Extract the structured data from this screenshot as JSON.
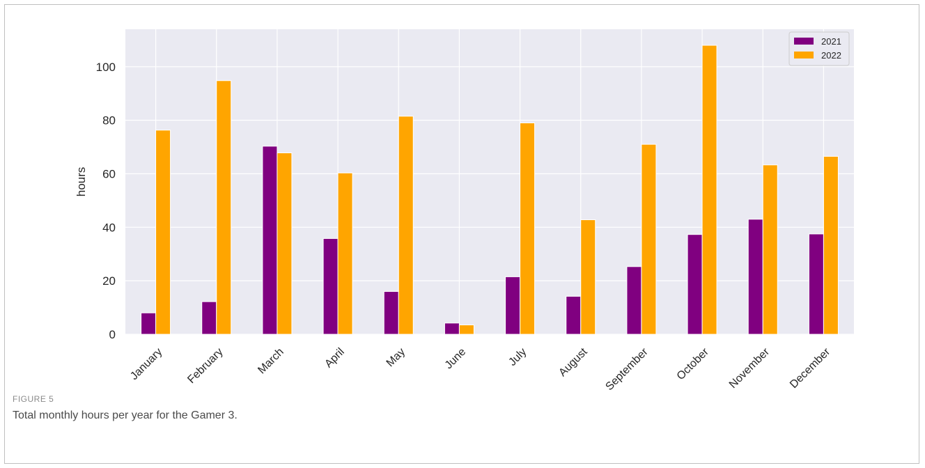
{
  "figure": {
    "label": "FIGURE 5",
    "caption": "Total monthly hours per year for the Gamer 3."
  },
  "chart_data": {
    "type": "bar",
    "title": "",
    "xlabel": "",
    "ylabel": "hours",
    "ylim": [
      0,
      114
    ],
    "yticks": [
      0,
      20,
      40,
      60,
      80,
      100
    ],
    "grid": true,
    "legend_position": "top-right",
    "categories": [
      "January",
      "February",
      "March",
      "April",
      "May",
      "June",
      "July",
      "August",
      "September",
      "October",
      "November",
      "December"
    ],
    "series": [
      {
        "name": "2021",
        "color": "#800080",
        "values": [
          8,
          12.2,
          70.3,
          35.8,
          16,
          4.2,
          21.5,
          14.2,
          25.3,
          37.3,
          43,
          37.5
        ]
      },
      {
        "name": "2022",
        "color": "#FFA500",
        "values": [
          76.3,
          94.8,
          67.8,
          60.3,
          81.5,
          3.5,
          79,
          42.8,
          71,
          108,
          63.3,
          66.5
        ]
      }
    ]
  }
}
